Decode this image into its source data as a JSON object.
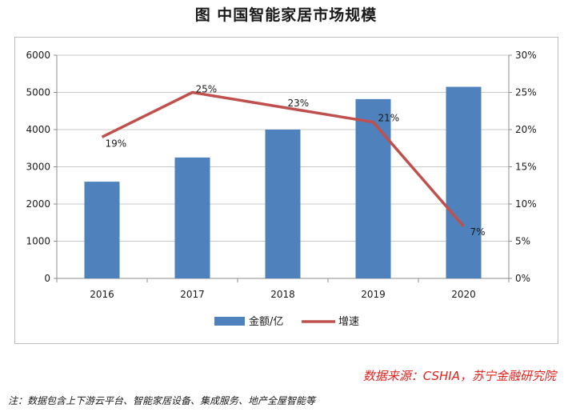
{
  "title": "图    中国智能家居市场规模",
  "chart_data": {
    "type": "bar",
    "categories": [
      "2016",
      "2017",
      "2018",
      "2019",
      "2020"
    ],
    "series": [
      {
        "name": "金额/亿",
        "type": "bar",
        "axis": "left",
        "color": "#4f81bd",
        "values": [
          2600,
          3250,
          4000,
          4820,
          5150
        ]
      },
      {
        "name": "增速",
        "type": "line",
        "axis": "right",
        "color": "#c0504d",
        "values": [
          0.19,
          0.25,
          0.23,
          0.21,
          0.07
        ],
        "labels": [
          "19%",
          "25%",
          "23%",
          "21%",
          "7%"
        ]
      }
    ],
    "y_left": {
      "min": 0,
      "max": 6000,
      "ticks": [
        "0",
        "1000",
        "2000",
        "3000",
        "4000",
        "5000",
        "6000"
      ]
    },
    "y_right": {
      "min": 0,
      "max": 0.3,
      "ticks": [
        "0%",
        "5%",
        "10%",
        "15%",
        "20%",
        "25%",
        "30%"
      ]
    },
    "grid": true,
    "legend": "bottom"
  },
  "source": "数据来源：CSHIA，苏宁金融研究院",
  "note": "注：数据包含上下游云平台、智能家居设备、集成服务、地产全屋智能等"
}
